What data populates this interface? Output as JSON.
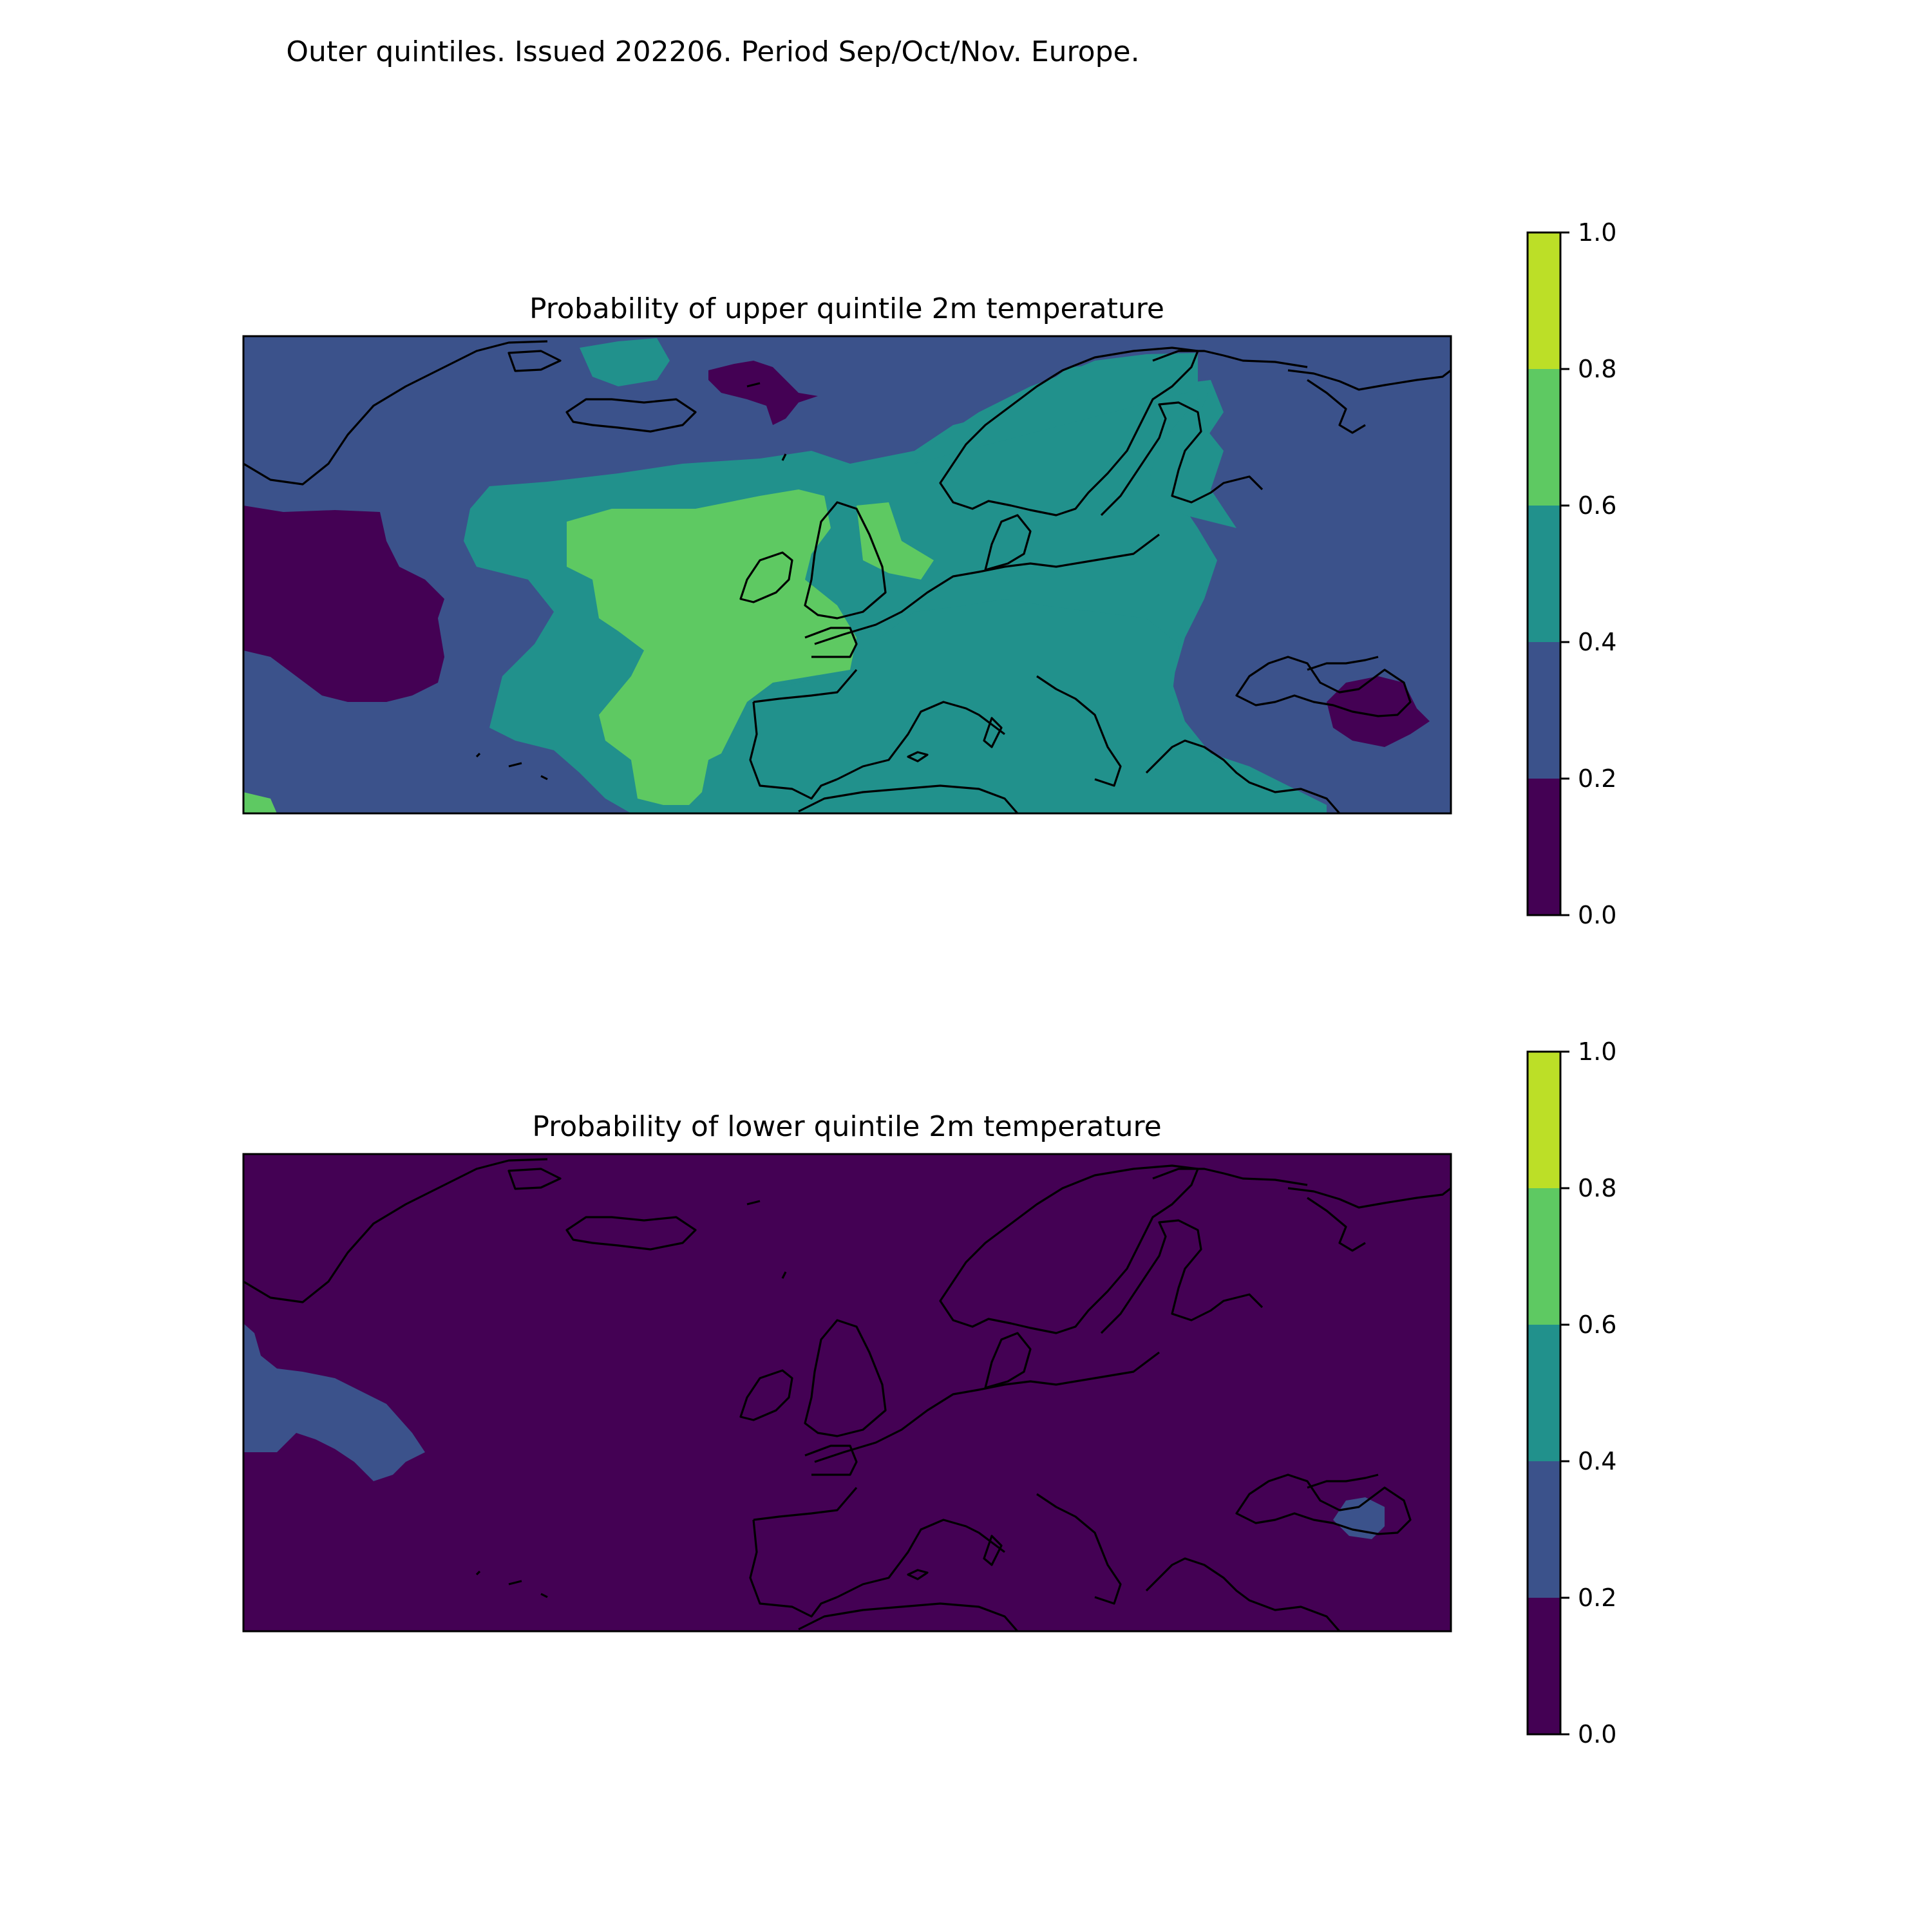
{
  "figure": {
    "suptitle": "Outer quintiles. Issued 202206. Period Sep/Oct/Nov. Europe."
  },
  "colors": {
    "levels": [
      "#440154",
      "#3b528b",
      "#21918c",
      "#5ec962",
      "#bcdf27"
    ],
    "background": "#ffffff",
    "coastline": "#000000"
  },
  "chart_data": [
    {
      "type": "heatmap",
      "subtype": "filled-contour-map",
      "title": "Probability of upper quintile 2m temperature",
      "region": "Europe",
      "colorbar": {
        "ticks": [
          "0.0",
          "0.2",
          "0.4",
          "0.6",
          "0.8",
          "1.0"
        ],
        "levels": [
          {
            "range": [
              0.0,
              0.2
            ],
            "color": "#440154"
          },
          {
            "range": [
              0.2,
              0.4
            ],
            "color": "#3b528b"
          },
          {
            "range": [
              0.4,
              0.6
            ],
            "color": "#21918c"
          },
          {
            "range": [
              0.6,
              0.8
            ],
            "color": "#5ec962"
          },
          {
            "range": [
              0.8,
              1.0
            ],
            "color": "#bcdf27"
          }
        ]
      },
      "background_level": [
        0.2,
        0.4
      ],
      "regions": [
        {
          "area": "western North Atlantic",
          "level": [
            0.0,
            0.2
          ]
        },
        {
          "area": "south of Svalbard / Norwegian Sea",
          "level": [
            0.0,
            0.2
          ]
        },
        {
          "area": "Caucasus / Caspian",
          "level": [
            0.0,
            0.2
          ]
        },
        {
          "area": "central North Atlantic, Iceland to Azores",
          "level": [
            0.4,
            0.6
          ]
        },
        {
          "area": "Mediterranean, central Europe and Scandinavia",
          "level": [
            0.4,
            0.6
          ]
        },
        {
          "area": "eastern North Atlantic, Ireland and France",
          "level": [
            0.6,
            0.8
          ]
        },
        {
          "area": "North Sea / eastern Britain",
          "level": [
            0.6,
            0.8
          ]
        },
        {
          "area": "northern Russia",
          "level": [
            0.2,
            0.4
          ]
        }
      ]
    },
    {
      "type": "heatmap",
      "subtype": "filled-contour-map",
      "title": "Probability of lower quintile 2m temperature",
      "region": "Europe",
      "colorbar": {
        "ticks": [
          "0.0",
          "0.2",
          "0.4",
          "0.6",
          "0.8",
          "1.0"
        ],
        "levels": [
          {
            "range": [
              0.0,
              0.2
            ],
            "color": "#440154"
          },
          {
            "range": [
              0.2,
              0.4
            ],
            "color": "#3b528b"
          },
          {
            "range": [
              0.4,
              0.6
            ],
            "color": "#21918c"
          },
          {
            "range": [
              0.6,
              0.8
            ],
            "color": "#5ec962"
          },
          {
            "range": [
              0.8,
              1.0
            ],
            "color": "#bcdf27"
          }
        ]
      },
      "background_level": [
        0.0,
        0.2
      ],
      "regions": [
        {
          "area": "western North Atlantic",
          "level": [
            0.2,
            0.4
          ]
        },
        {
          "area": "Caucasus",
          "level": [
            0.2,
            0.4
          ]
        }
      ]
    }
  ]
}
